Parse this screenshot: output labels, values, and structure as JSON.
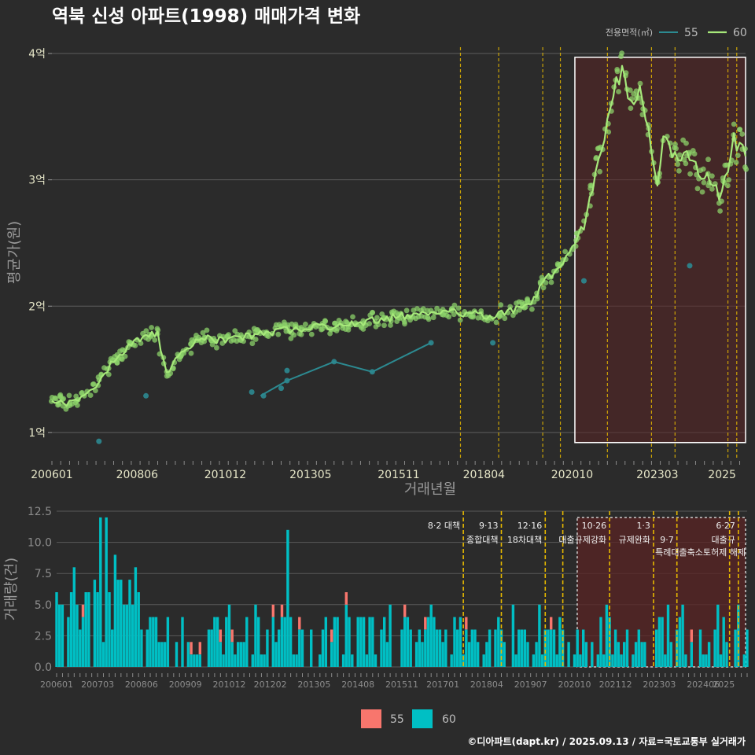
{
  "title": "역북 신성 아파트(1998) 매매가격 변화",
  "footer": "©디아파트(dapt.kr) / 2025.09.13 / 자료=국토교통부 실거래가",
  "colors": {
    "background": "#2b2b2b",
    "series_55_line": "#2c8a91",
    "series_60_line": "#a6e87a",
    "series_60_point": "#8ed66b",
    "bar_55": "#f8766d",
    "bar_60": "#00bfc4",
    "policy_line": "#e6b800",
    "highlight_fill": "#5a2424"
  },
  "chart_data": [
    {
      "type": "line",
      "name": "price",
      "xlabel": "거래년월",
      "ylabel": "평균가(원)",
      "x_range": [
        "2006-01",
        "2025-09"
      ],
      "ylim": [
        0.8,
        4.05
      ],
      "y_unit": "억",
      "y_ticks": [
        1,
        2,
        3,
        4
      ],
      "y_tick_labels": [
        "1억",
        "2억",
        "3억",
        "4억"
      ],
      "x_tick_labels": [
        "200601",
        "200806",
        "201012",
        "201305",
        "201511",
        "201804",
        "202010",
        "202303",
        "2025"
      ],
      "legend": {
        "title": "전용면적(㎡)",
        "position": "top-right",
        "entries": [
          "55",
          "60"
        ]
      },
      "highlight_range": [
        "2020-12",
        "2025-09"
      ],
      "series": [
        {
          "name": "55",
          "points": [
            [
              "2007-05",
              0.93
            ],
            [
              "2008-09",
              1.29
            ],
            [
              "2011-09",
              1.32
            ],
            [
              "2012-01",
              1.29
            ],
            [
              "2012-07",
              1.35
            ],
            [
              "2012-09",
              1.41
            ],
            [
              "2012-09",
              1.49
            ],
            [
              "2014-01",
              1.56
            ],
            [
              "2015-02",
              1.48
            ],
            [
              "2016-10",
              1.71
            ],
            [
              "2018-07",
              1.71
            ],
            [
              "2021-02",
              2.2
            ],
            [
              "2024-02",
              2.32
            ]
          ],
          "line": [
            [
              "2011-12",
              1.29
            ],
            [
              "2012-09",
              1.41
            ],
            [
              "2014-01",
              1.56
            ],
            [
              "2015-02",
              1.48
            ],
            [
              "2016-10",
              1.71
            ]
          ]
        },
        {
          "name": "60",
          "trend": [
            [
              "2006-01",
              1.25
            ],
            [
              "2006-06",
              1.22
            ],
            [
              "2006-10",
              1.28
            ],
            [
              "2007-03",
              1.33
            ],
            [
              "2007-07",
              1.48
            ],
            [
              "2007-12",
              1.62
            ],
            [
              "2008-04",
              1.7
            ],
            [
              "2008-09",
              1.78
            ],
            [
              "2009-01",
              1.77
            ],
            [
              "2009-04",
              1.45
            ],
            [
              "2009-08",
              1.62
            ],
            [
              "2010-01",
              1.7
            ],
            [
              "2010-06",
              1.74
            ],
            [
              "2010-12",
              1.72
            ],
            [
              "2011-06",
              1.76
            ],
            [
              "2011-12",
              1.78
            ],
            [
              "2012-06",
              1.8
            ],
            [
              "2012-12",
              1.82
            ],
            [
              "2013-06",
              1.84
            ],
            [
              "2013-12",
              1.84
            ],
            [
              "2014-06",
              1.86
            ],
            [
              "2014-12",
              1.88
            ],
            [
              "2015-06",
              1.9
            ],
            [
              "2015-12",
              1.92
            ],
            [
              "2016-06",
              1.95
            ],
            [
              "2016-12",
              1.96
            ],
            [
              "2017-06",
              1.95
            ],
            [
              "2017-12",
              1.94
            ],
            [
              "2018-06",
              1.92
            ],
            [
              "2018-10",
              1.95
            ],
            [
              "2019-03",
              1.98
            ],
            [
              "2019-08",
              2.02
            ],
            [
              "2019-12",
              2.18
            ],
            [
              "2020-05",
              2.3
            ],
            [
              "2020-10",
              2.45
            ],
            [
              "2021-02",
              2.65
            ],
            [
              "2021-06",
              3.05
            ],
            [
              "2021-10",
              3.45
            ],
            [
              "2022-01",
              3.75
            ],
            [
              "2022-03",
              3.88
            ],
            [
              "2022-06",
              3.62
            ],
            [
              "2022-09",
              3.7
            ],
            [
              "2022-12",
              3.35
            ],
            [
              "2023-03",
              3.0
            ],
            [
              "2023-05",
              3.3
            ],
            [
              "2023-09",
              3.18
            ],
            [
              "2024-01",
              3.2
            ],
            [
              "2024-05",
              3.05
            ],
            [
              "2024-09",
              3.0
            ],
            [
              "2025-01",
              2.85
            ],
            [
              "2025-05",
              3.3
            ],
            [
              "2025-09",
              3.2
            ]
          ]
        }
      ]
    },
    {
      "type": "bar",
      "name": "volume",
      "ylabel": "거래량(건)",
      "ylim": [
        0,
        12.5
      ],
      "y_ticks": [
        0,
        2.5,
        5,
        7.5,
        10,
        12.5
      ],
      "y_tick_labels": [
        "0.0",
        "2.5",
        "5.0",
        "7.5",
        "10.0",
        "12.5"
      ],
      "x_tick_labels": [
        "200601",
        "200703",
        "200806",
        "200909",
        "201012",
        "201202",
        "201305",
        "201408",
        "201511",
        "201701",
        "201804",
        "201907",
        "202010",
        "202112",
        "202303",
        "202406",
        "2025"
      ],
      "legend": {
        "position": "bottom",
        "entries": [
          "55",
          "60"
        ]
      },
      "highlight_range": [
        "2020-12",
        "2025-09"
      ]
    }
  ],
  "policies": [
    {
      "date": "2017-08",
      "line1": "8·2 대책",
      "line2": ""
    },
    {
      "date": "2018-09",
      "line1": "9·13",
      "line2": "종합대책"
    },
    {
      "date": "2019-12",
      "line1": "12·16",
      "line2": "18차대책"
    },
    {
      "date": "2020-06",
      "line1": "",
      "line2": ""
    },
    {
      "date": "2021-10",
      "line1": "10·26",
      "line2": "대출규제강화"
    },
    {
      "date": "2023-01",
      "line1": "1·3",
      "line2": "규제완화"
    },
    {
      "date": "2023-09",
      "line1": "",
      "line2": "9·7"
    },
    {
      "date": "2025-06",
      "line1": "6·27",
      "line2": "대출규"
    },
    {
      "date": "2025-03",
      "line1": "",
      "line2": ""
    }
  ],
  "policy_extra_text": "특례대출축소토허제 해제"
}
